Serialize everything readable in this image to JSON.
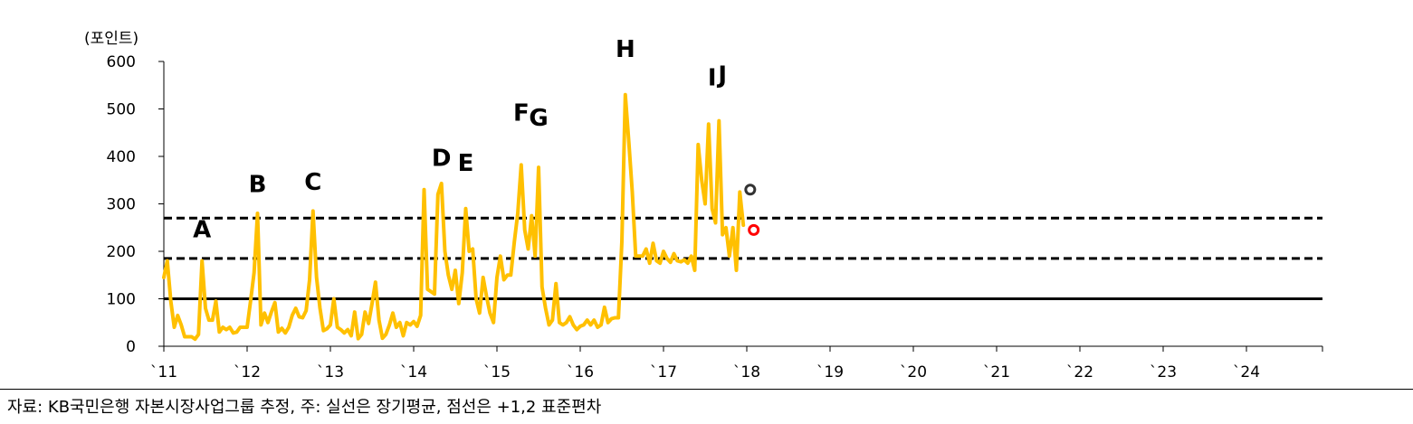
{
  "chart_data": {
    "type": "line",
    "unit_label": "(포인트)",
    "ylim": [
      0,
      600
    ],
    "yticks": [
      "0",
      "100",
      "200",
      "300",
      "400",
      "500",
      "600"
    ],
    "xticks": [
      "`11",
      "`12",
      "`13",
      "`14",
      "`15",
      "`16",
      "`17",
      "`18",
      "`19",
      "`20",
      "`21",
      "`22",
      "`23",
      "`24"
    ],
    "x_start_year": 2011,
    "points_per_year": 24,
    "series": [
      {
        "color": "#FFC000",
        "values": [
          145,
          180,
          95,
          40,
          65,
          45,
          20,
          20,
          20,
          15,
          25,
          180,
          80,
          55,
          55,
          95,
          30,
          40,
          35,
          40,
          28,
          30,
          40,
          40,
          40,
          95,
          155,
          280,
          45,
          70,
          50,
          72,
          92,
          30,
          38,
          28,
          40,
          65,
          80,
          62,
          60,
          75,
          140,
          285,
          145,
          80,
          33,
          37,
          45,
          100,
          40,
          35,
          28,
          35,
          22,
          72,
          16,
          25,
          72,
          48,
          90,
          135,
          55,
          17,
          25,
          45,
          70,
          40,
          50,
          22,
          50,
          45,
          52,
          42,
          65,
          330,
          120,
          115,
          110,
          320,
          343,
          200,
          150,
          120,
          160,
          90,
          155,
          290,
          200,
          205,
          100,
          70,
          145,
          105,
          70,
          50,
          145,
          190,
          140,
          150,
          150,
          220,
          280,
          382,
          245,
          205,
          275,
          190,
          377,
          125,
          80,
          45,
          55,
          132,
          50,
          45,
          50,
          62,
          45,
          35,
          42,
          45,
          55,
          45,
          55,
          40,
          45,
          82,
          50,
          58,
          60,
          60,
          220,
          530,
          430,
          325,
          190,
          190,
          190,
          205,
          175,
          217,
          180,
          175,
          200,
          185,
          177,
          195,
          180,
          178,
          182,
          175,
          190,
          160,
          425,
          350,
          300,
          468,
          290,
          260,
          475,
          235,
          250,
          190,
          250,
          160,
          325,
          255
        ]
      }
    ],
    "reference_lines": [
      {
        "label": "장기평균",
        "value": 100,
        "style": "solid"
      },
      {
        "label": "+1 표준편차",
        "value": 185,
        "style": "dashed"
      },
      {
        "label": "+2 표준편차",
        "value": 270,
        "style": "dashed"
      }
    ],
    "markers": [
      {
        "value": 330,
        "index": 169,
        "color": "#333333"
      },
      {
        "value": 245,
        "index": 170,
        "color": "#FF0000"
      }
    ],
    "annotations": [
      {
        "text": "A",
        "index": 11,
        "value": 230
      },
      {
        "text": "B",
        "index": 27,
        "value": 325
      },
      {
        "text": "C",
        "index": 43,
        "value": 330
      },
      {
        "text": "D",
        "index": 80,
        "value": 380
      },
      {
        "text": "E",
        "index": 87,
        "value": 370
      },
      {
        "text": "F",
        "index": 103,
        "value": 475
      },
      {
        "text": "G",
        "index": 108,
        "value": 465
      },
      {
        "text": "H",
        "index": 133,
        "value": 610
      },
      {
        "text": "I",
        "index": 158,
        "value": 550
      },
      {
        "text": "J",
        "index": 161,
        "value": 555
      }
    ]
  },
  "source_note": "자료: KB국민은행 자본시장사업그룹 추정, 주: 실선은 장기평균, 점선은 +1,2 표준편차"
}
